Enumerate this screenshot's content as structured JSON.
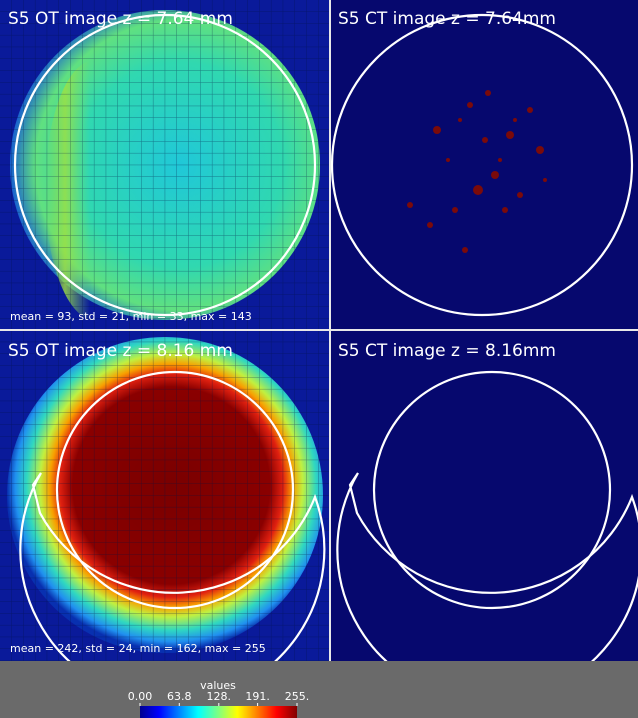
{
  "panels": [
    {
      "title": "S5 OT image z = 7.64 mm",
      "stats": "mean = 93, std = 21, min = 33, max = 143"
    },
    {
      "title": "S5 CT image z = 7.64mm"
    },
    {
      "title": "S5 OT image z = 8.16 mm",
      "stats": "mean = 242, std = 24, min = 162, max = 255"
    },
    {
      "title": "S5 CT image z = 8.16mm"
    }
  ],
  "colorbar": {
    "title": "values",
    "range": [
      0,
      255
    ],
    "ticks": [
      {
        "value": 0,
        "label": "0.00"
      },
      {
        "value": 63.8,
        "label": "63.8"
      },
      {
        "value": 128,
        "label": "128."
      },
      {
        "value": 191,
        "label": "191."
      },
      {
        "value": 255,
        "label": "255."
      }
    ]
  }
}
